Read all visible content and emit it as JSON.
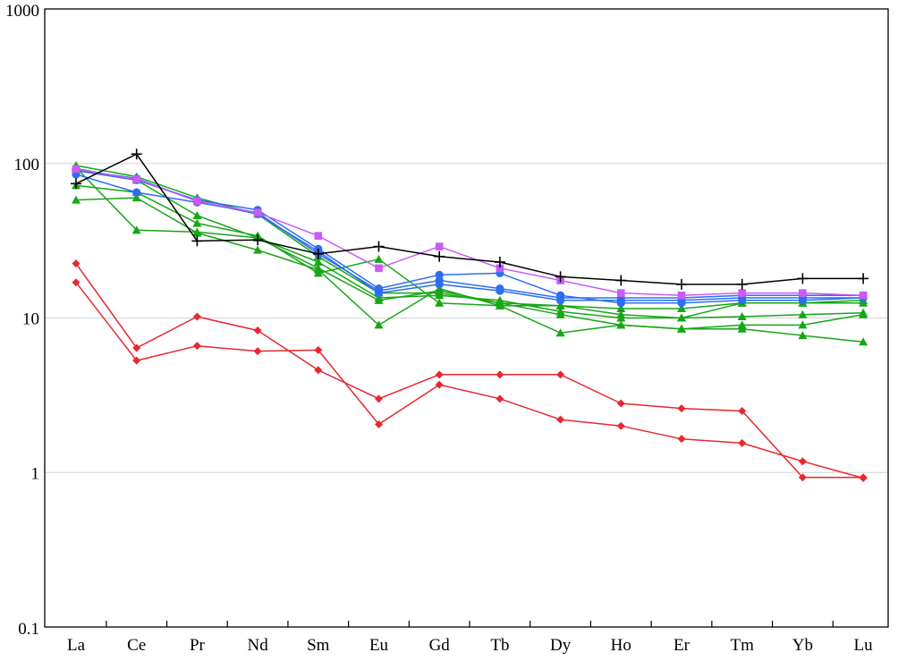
{
  "chart_data": {
    "type": "line",
    "y_scale": "log",
    "ylim": [
      0.1,
      1000
    ],
    "y_ticks": [
      "0.1",
      "1",
      "10",
      "100",
      "1000"
    ],
    "grid": "horizontal",
    "categories": [
      "La",
      "Ce",
      "Pr",
      "Nd",
      "Sm",
      "Eu",
      "Gd",
      "Tb",
      "Dy",
      "Ho",
      "Er",
      "Tm",
      "Yb",
      "Lu"
    ],
    "series": [
      {
        "color": "#e8272f",
        "marker": "diamond",
        "values": [
          22.5,
          6.4,
          10.2,
          8.3,
          4.6,
          3.0,
          4.3,
          4.3,
          4.3,
          2.8,
          2.6,
          2.5,
          0.93,
          0.93
        ]
      },
      {
        "color": "#e8272f",
        "marker": "diamond",
        "values": [
          17.0,
          5.3,
          6.6,
          6.1,
          6.2,
          2.05,
          3.7,
          3.0,
          2.2,
          2.0,
          1.65,
          1.55,
          1.18,
          0.92
        ]
      },
      {
        "color": "#16a616",
        "marker": "triangle",
        "values": [
          97,
          82,
          60,
          47,
          25,
          14.5,
          14.5,
          12.5,
          12.0,
          11.5,
          11.5,
          12.5,
          12.5,
          13.0
        ]
      },
      {
        "color": "#16a616",
        "marker": "triangle",
        "values": [
          93,
          78,
          46,
          33,
          21,
          13.0,
          15.0,
          12.5,
          10.5,
          9.0,
          8.5,
          9.0,
          9.0,
          10.5
        ]
      },
      {
        "color": "#16a616",
        "marker": "triangle",
        "values": [
          72,
          65,
          41,
          34,
          19.5,
          24,
          12.5,
          12.0,
          8.0,
          9.0,
          8.5,
          8.5,
          7.7,
          7.0
        ]
      },
      {
        "color": "#16a616",
        "marker": "triangle",
        "values": [
          58,
          60,
          35.5,
          27.5,
          20.5,
          9.0,
          15.5,
          12.0,
          12.0,
          10.5,
          10.0,
          10.2,
          10.5,
          10.8
        ]
      },
      {
        "color": "#16a616",
        "marker": "triangle",
        "values": [
          94,
          37,
          36,
          33,
          23,
          13.5,
          14.0,
          13.0,
          11.0,
          10.0,
          10.0,
          12.5,
          12.5,
          12.5
        ]
      },
      {
        "color": "#2d6ef0",
        "marker": "circle",
        "values": [
          90,
          78,
          58,
          50,
          28,
          15.5,
          19.0,
          19.5,
          14.0,
          12.5,
          12.5,
          13.0,
          13.0,
          13.5
        ]
      },
      {
        "color": "#2d6ef0",
        "marker": "circle",
        "values": [
          85,
          65,
          56,
          48,
          26,
          15.0,
          17.5,
          15.5,
          13.5,
          13.5,
          13.5,
          14.0,
          14.0,
          14.0
        ]
      },
      {
        "color": "#2d6ef0",
        "marker": "circle",
        "values": [
          91,
          80,
          57,
          47,
          27,
          14.5,
          16.5,
          15.0,
          13.0,
          13.0,
          13.0,
          13.5,
          13.5,
          13.5
        ]
      },
      {
        "color": "#c95cf5",
        "marker": "square",
        "values": [
          92,
          79,
          57,
          48,
          34,
          21,
          29,
          21,
          17.5,
          14.5,
          14.0,
          14.5,
          14.5,
          14.0
        ]
      },
      {
        "color": "#000000",
        "marker": "plus",
        "values": [
          74,
          115,
          31.5,
          32,
          26,
          29,
          25,
          23,
          18.5,
          17.5,
          16.5,
          16.5,
          18.0,
          18.0
        ]
      }
    ]
  }
}
